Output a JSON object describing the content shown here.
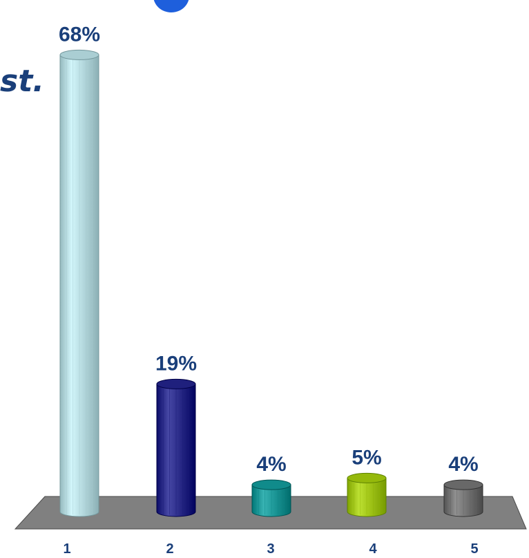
{
  "fragment": {
    "text": "st."
  },
  "chart_data": {
    "type": "bar",
    "style": "3d-cylinder",
    "categories": [
      "1",
      "2",
      "3",
      "4",
      "5"
    ],
    "values": [
      68,
      19,
      4,
      5,
      4
    ],
    "value_labels": [
      "68%",
      "19%",
      "4%",
      "5%",
      "4%"
    ],
    "ylim": [
      0,
      70
    ],
    "grid": false,
    "legend": "none",
    "colors": [
      "#b9dde2",
      "#2e2f8c",
      "#1f9a9a",
      "#a4c81a",
      "#777777"
    ],
    "floor_color": "#808080",
    "label_color": "#1a3f7a"
  }
}
